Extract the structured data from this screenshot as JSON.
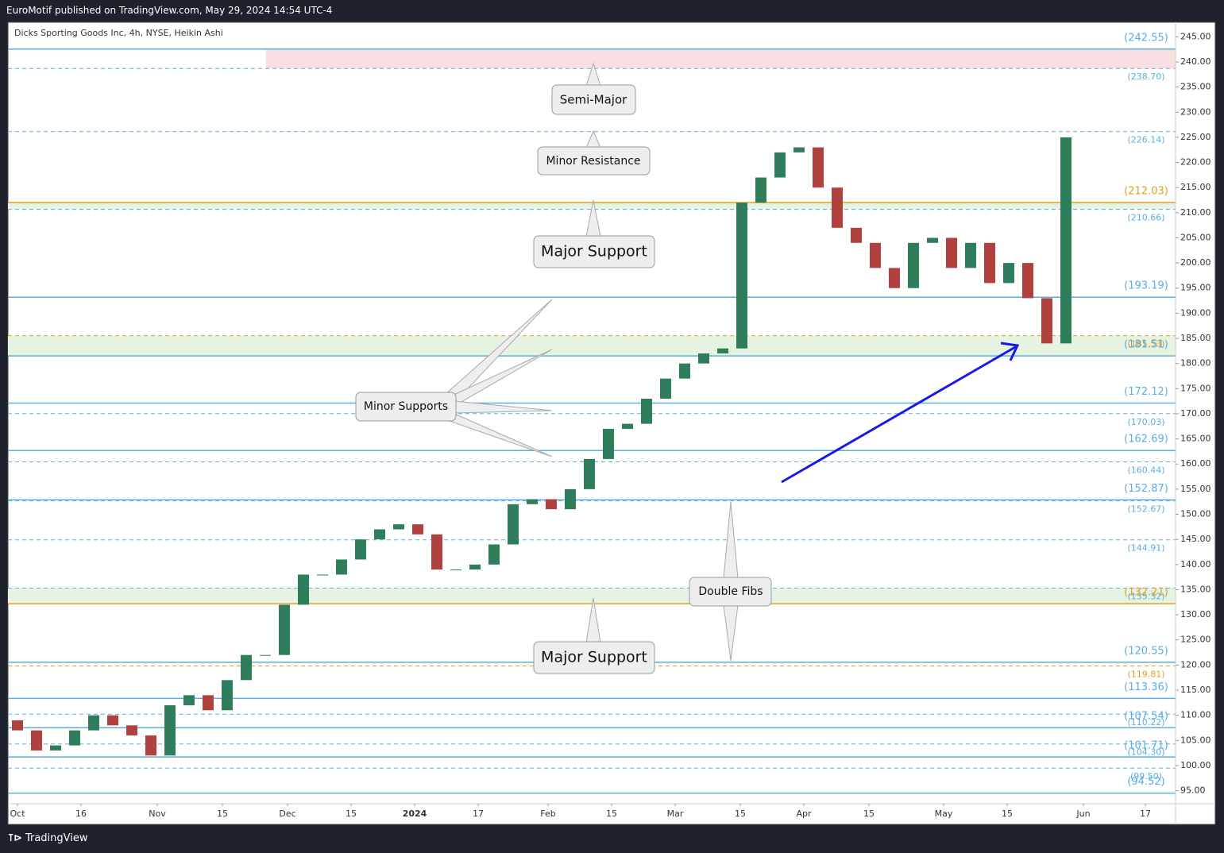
{
  "header": {
    "text": "EuroMotif published on TradingView.com, May 29, 2024 14:54 UTC-4"
  },
  "footer": {
    "brand": "TradingView"
  },
  "chart_data": {
    "type": "candlestick",
    "title": "Dicks Sporting Goods Inc, 4h, NYSE, Heikin Ashi",
    "up_color": "#2e7d5b",
    "down_color": "#b0413e",
    "x": [
      0,
      6,
      12,
      18,
      24,
      30,
      36,
      42,
      48,
      54,
      60,
      66,
      72,
      78,
      84,
      90,
      96,
      102,
      108,
      114,
      120,
      126,
      132,
      138,
      144,
      150,
      156,
      162,
      168,
      174,
      180,
      186,
      192,
      198,
      204,
      210,
      216,
      222,
      228,
      234,
      240,
      246,
      252,
      258,
      264,
      270,
      276,
      282,
      288,
      294,
      300,
      306,
      312,
      318,
      324,
      330
    ],
    "open": [
      109,
      107,
      103,
      104,
      107,
      110,
      108,
      106,
      102,
      112,
      114,
      111,
      117,
      122,
      122,
      132,
      138,
      138,
      141,
      145,
      147,
      148,
      146,
      139,
      139,
      140,
      144,
      152,
      153,
      151,
      155,
      161,
      167,
      168,
      173,
      177,
      180,
      182,
      183,
      212,
      217,
      222,
      223,
      215,
      207,
      204,
      199,
      195,
      204,
      205,
      199,
      204,
      196,
      200,
      193,
      184
    ],
    "close": [
      107,
      103,
      104,
      107,
      110,
      108,
      106,
      102,
      112,
      114,
      111,
      117,
      122,
      122,
      132,
      138,
      138,
      141,
      145,
      147,
      148,
      146,
      139,
      139,
      140,
      144,
      152,
      153,
      151,
      155,
      161,
      167,
      168,
      173,
      177,
      180,
      182,
      183,
      212,
      217,
      222,
      223,
      215,
      207,
      204,
      199,
      195,
      204,
      205,
      199,
      204,
      196,
      200,
      193,
      184,
      225
    ],
    "xlim": [
      -3,
      364.5
    ],
    "xticks": [
      {
        "value": 0,
        "label": "Oct"
      },
      {
        "value": 20,
        "label": "16"
      },
      {
        "value": 44,
        "label": "Nov"
      },
      {
        "value": 64.5,
        "label": "15"
      },
      {
        "value": 85,
        "label": "Dec"
      },
      {
        "value": 105,
        "label": "15"
      },
      {
        "value": 125,
        "label": "2024"
      },
      {
        "value": 145,
        "label": "17"
      },
      {
        "value": 167,
        "label": "Feb"
      },
      {
        "value": 187,
        "label": "15"
      },
      {
        "value": 207,
        "label": "Mar"
      },
      {
        "value": 227.5,
        "label": "15"
      },
      {
        "value": 247.5,
        "label": "Apr"
      },
      {
        "value": 268,
        "label": "15"
      },
      {
        "value": 291.5,
        "label": "May"
      },
      {
        "value": 311.5,
        "label": "15"
      },
      {
        "value": 335.5,
        "label": "Jun"
      },
      {
        "value": 355,
        "label": "17"
      }
    ],
    "ylim": [
      92.4,
      247.9
    ],
    "yticks": [
      {
        "value": 245,
        "label": "245.00"
      },
      {
        "value": 240,
        "label": "240.00"
      },
      {
        "value": 235,
        "label": "235.00"
      },
      {
        "value": 230,
        "label": "230.00"
      },
      {
        "value": 225,
        "label": "225.00"
      },
      {
        "value": 220,
        "label": "220.00"
      },
      {
        "value": 215,
        "label": "215.00"
      },
      {
        "value": 210,
        "label": "210.00"
      },
      {
        "value": 205,
        "label": "205.00"
      },
      {
        "value": 200,
        "label": "200.00"
      },
      {
        "value": 195,
        "label": "195.00"
      },
      {
        "value": 190,
        "label": "190.00"
      },
      {
        "value": 185,
        "label": "185.00"
      },
      {
        "value": 180,
        "label": "180.00"
      },
      {
        "value": 175,
        "label": "175.00"
      },
      {
        "value": 170,
        "label": "170.00"
      },
      {
        "value": 165,
        "label": "165.00"
      },
      {
        "value": 160,
        "label": "160.00"
      },
      {
        "value": 155,
        "label": "155.00"
      },
      {
        "value": 150,
        "label": "150.00"
      },
      {
        "value": 145,
        "label": "145.00"
      },
      {
        "value": 140,
        "label": "140.00"
      },
      {
        "value": 135,
        "label": "135.00"
      },
      {
        "value": 130,
        "label": "130.00"
      },
      {
        "value": 125,
        "label": "125.00"
      },
      {
        "value": 120,
        "label": "120.00"
      },
      {
        "value": 115,
        "label": "115.00"
      },
      {
        "value": 110,
        "label": "110.00"
      },
      {
        "value": 105,
        "label": "105.00"
      },
      {
        "value": 100,
        "label": "100.00"
      },
      {
        "value": 95,
        "label": "95.00"
      }
    ],
    "zones": [
      {
        "low": 238.7,
        "high": 242.55,
        "color": "#f9dfe1"
      },
      {
        "low": 210.66,
        "high": 212.03,
        "color": "#e6f3e3"
      },
      {
        "low": 181.51,
        "high": 185.53,
        "color": "#e6f3e3"
      },
      {
        "low": 132.21,
        "high": 135.32,
        "color": "#e6f3e3"
      }
    ],
    "levels": [
      {
        "value": 242.55,
        "label": "(242.55)",
        "color": "#5aaee0",
        "style": "solid"
      },
      {
        "value": 238.7,
        "label": "(238.70)",
        "color": "#5aaee0",
        "style": "dashed"
      },
      {
        "value": 226.14,
        "label": "(226.14)",
        "color": "#5aaee0",
        "style": "dashed"
      },
      {
        "value": 212.03,
        "label": "(212.03)",
        "color": "#e0a020",
        "style": "solid"
      },
      {
        "value": 210.66,
        "label": "(210.66)",
        "color": "#5aaee0",
        "style": "dashed"
      },
      {
        "value": 193.19,
        "label": "(193.19)",
        "color": "#5aaee0",
        "style": "solid"
      },
      {
        "value": 185.53,
        "label": "(185.53)",
        "color": "#e0a020",
        "style": "dashed"
      },
      {
        "value": 181.51,
        "label": "(181.51)",
        "color": "#5aaee0",
        "style": "solid"
      },
      {
        "value": 172.12,
        "label": "(172.12)",
        "color": "#5aaee0",
        "style": "solid"
      },
      {
        "value": 170.03,
        "label": "(170.03)",
        "color": "#5aaee0",
        "style": "dashed"
      },
      {
        "value": 162.69,
        "label": "(162.69)",
        "color": "#5aaee0",
        "style": "solid"
      },
      {
        "value": 160.44,
        "label": "(160.44)",
        "color": "#5aaee0",
        "style": "dashed"
      },
      {
        "value": 152.87,
        "label": "(152.87)",
        "color": "#5aaee0",
        "style": "solid"
      },
      {
        "value": 152.67,
        "label": "(152.67)",
        "color": "#5aaee0",
        "style": "dashed"
      },
      {
        "value": 144.91,
        "label": "(144.91)",
        "color": "#5aaee0",
        "style": "dashed"
      },
      {
        "value": 135.32,
        "label": "(135.32)",
        "color": "#5aaee0",
        "style": "dashed"
      },
      {
        "value": 132.21,
        "label": "(132.21)",
        "color": "#e0a020",
        "style": "solid"
      },
      {
        "value": 120.55,
        "label": "(120.55)",
        "color": "#5aaee0",
        "style": "solid"
      },
      {
        "value": 119.81,
        "label": "(119.81)",
        "color": "#e0a020",
        "style": "dashed"
      },
      {
        "value": 113.36,
        "label": "(113.36)",
        "color": "#5aaee0",
        "style": "solid"
      },
      {
        "value": 110.22,
        "label": "(110.22)",
        "color": "#5aaee0",
        "style": "dashed"
      },
      {
        "value": 107.54,
        "label": "(107.54)",
        "color": "#5aaee0",
        "style": "solid"
      },
      {
        "value": 104.3,
        "label": "(104.30)",
        "color": "#5aaee0",
        "style": "dashed"
      },
      {
        "value": 101.71,
        "label": "(101.71)",
        "color": "#5aaee0",
        "style": "solid"
      },
      {
        "value": 99.5,
        "label": "(99.50)",
        "color": "#5aaee0",
        "style": "dashed"
      },
      {
        "value": 94.52,
        "label": "(94.52)",
        "color": "#5aaee0",
        "style": "solid"
      }
    ],
    "annotations": [
      "Semi-Major",
      "Minor Resistance",
      "Major Support",
      "Minor Supports",
      "Double Fibs",
      "Major Support"
    ]
  }
}
